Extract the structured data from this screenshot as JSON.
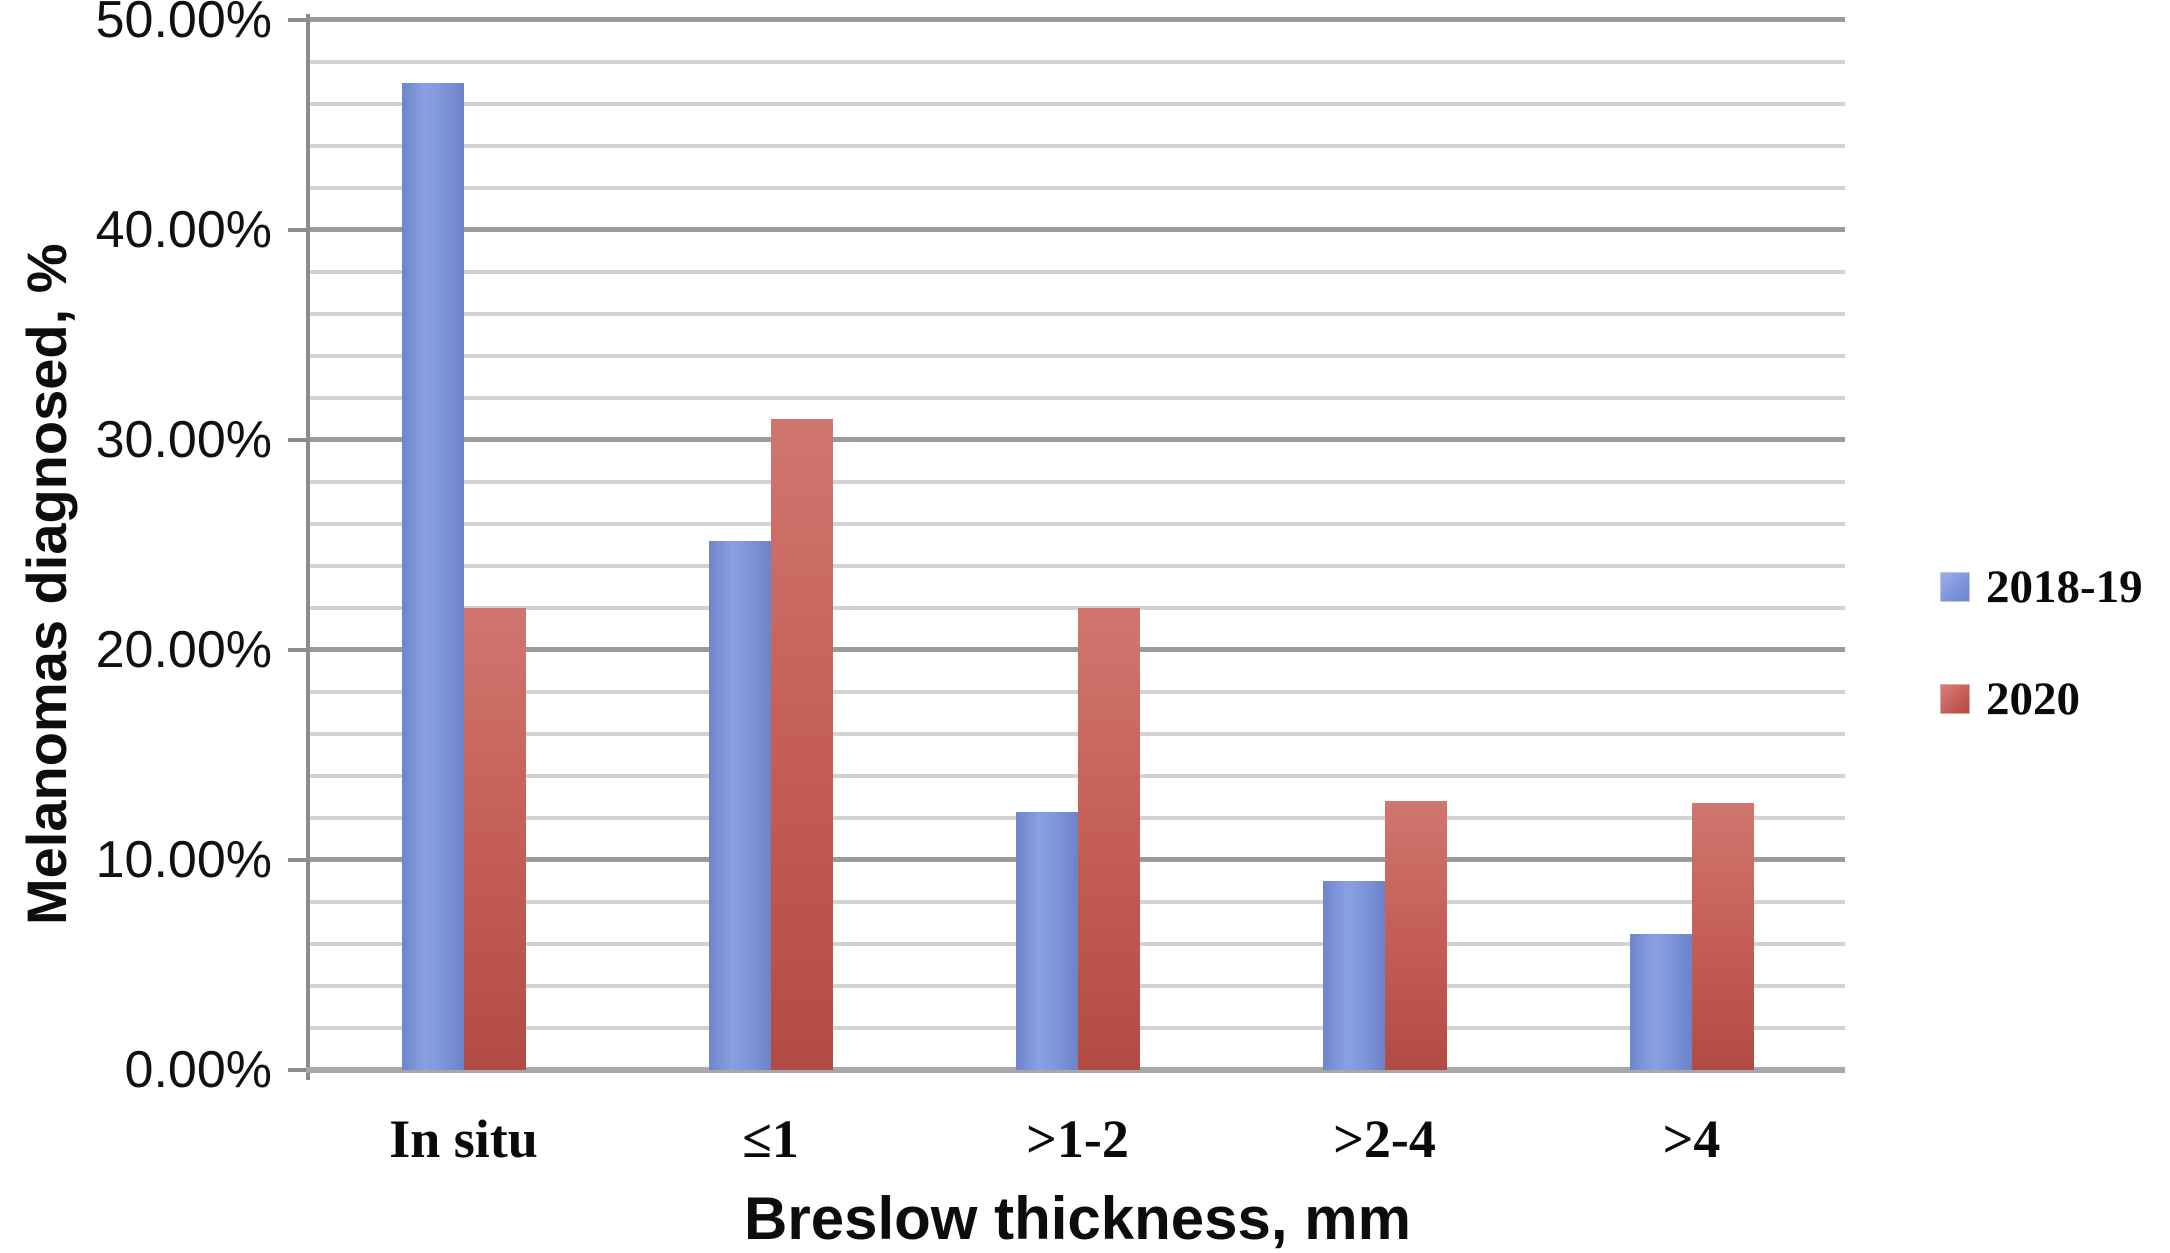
{
  "chart_data": {
    "type": "bar",
    "title": "",
    "xlabel": "Breslow thickness, mm",
    "ylabel": "Melanomas diagnosed, %",
    "categories": [
      "In situ",
      "≤1",
      ">1-2",
      ">2-4",
      ">4"
    ],
    "series": [
      {
        "name": "2018-19",
        "color": "#7b92db",
        "values": [
          47.0,
          25.2,
          12.3,
          9.0,
          6.5
        ]
      },
      {
        "name": "2020",
        "color": "#c2574f",
        "values": [
          22.0,
          31.0,
          22.0,
          12.8,
          12.7
        ]
      }
    ],
    "ylim": [
      0,
      50
    ],
    "ytick_major_step": 10,
    "ytick_minor_step": 2,
    "ytick_labels": [
      "0.00%",
      "10.00%",
      "20.00%",
      "30.00%",
      "40.00%",
      "50.00%"
    ],
    "grid": "horizontal",
    "legend_position": "right"
  },
  "colors": {
    "series_blue": "#7b92db",
    "series_red": "#c2574f",
    "gridline_minor": "#d3d3d3",
    "gridline_major": "#9b9b9b",
    "axis_line": "#8c8c8c",
    "text": "#0d0d0d",
    "background": "#ffffff"
  }
}
